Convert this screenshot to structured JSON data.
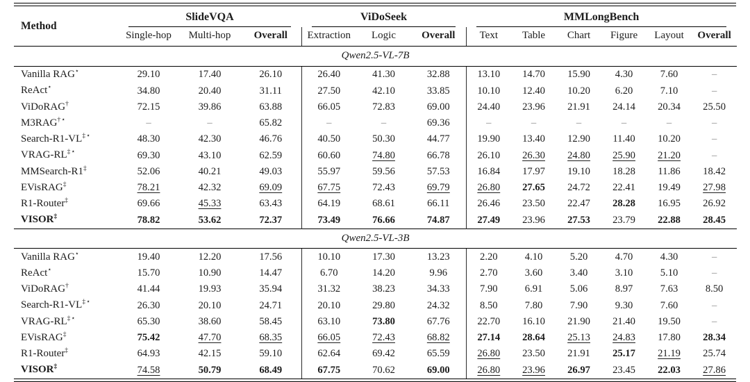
{
  "page": {
    "background": "#ffffff",
    "text_color": "#1c1c1c",
    "rule_color": "#000000"
  },
  "table": {
    "header": {
      "method_label": "Method",
      "groups": [
        {
          "label": "SlideVQA",
          "subcolumns": [
            "Single-hop",
            "Multi-hop",
            "b:Overall"
          ]
        },
        {
          "label": "ViDoSeek",
          "subcolumns": [
            "Extraction",
            "Logic",
            "b:Overall"
          ]
        },
        {
          "label": "MMLongBench",
          "subcolumns": [
            "Text",
            "Table",
            "Chart",
            "Figure",
            "Layout",
            "b:Overall"
          ]
        }
      ]
    },
    "sections": [
      {
        "title": "Qwen2.5-VL-7B",
        "rows": [
          {
            "method": "Vanilla RAG",
            "sup": "⋆",
            "bold": false,
            "values": [
              "29.10",
              "17.40",
              "26.10",
              "26.40",
              "41.30",
              "32.88",
              "13.10",
              "14.70",
              "15.90",
              "4.30",
              "7.60",
              "–"
            ]
          },
          {
            "method": "ReAct",
            "sup": "⋆",
            "bold": false,
            "values": [
              "34.80",
              "20.40",
              "31.11",
              "27.50",
              "42.10",
              "33.85",
              "10.10",
              "12.40",
              "10.20",
              "6.20",
              "7.10",
              "–"
            ]
          },
          {
            "method": "ViDoRAG",
            "sup": "†",
            "bold": false,
            "values": [
              "72.15",
              "39.86",
              "63.88",
              "66.05",
              "72.83",
              "69.00",
              "24.40",
              "23.96",
              "21.91",
              "24.14",
              "20.34",
              "25.50"
            ]
          },
          {
            "method": "M3RAG",
            "sup": "†⋆",
            "bold": false,
            "values": [
              "–",
              "–",
              "65.82",
              "–",
              "–",
              "69.36",
              "–",
              "–",
              "–",
              "–",
              "–",
              "–"
            ]
          },
          {
            "method": "Search-R1-VL",
            "sup": "‡⋆",
            "bold": false,
            "values": [
              "48.30",
              "42.30",
              "46.76",
              "40.50",
              "50.30",
              "44.77",
              "19.90",
              "13.40",
              "12.90",
              "11.40",
              "10.20",
              "–"
            ]
          },
          {
            "method": "VRAG-RL",
            "sup": "‡⋆",
            "bold": false,
            "values": [
              "69.30",
              "43.10",
              "62.59",
              "60.60",
              "u:74.80",
              "66.78",
              "26.10",
              "u:26.30",
              "u:24.80",
              "u:25.90",
              "u:21.20",
              "–"
            ]
          },
          {
            "method": "MMSearch-R1",
            "sup": "‡",
            "bold": false,
            "values": [
              "52.06",
              "40.21",
              "49.03",
              "55.97",
              "59.56",
              "57.53",
              "16.84",
              "17.97",
              "19.10",
              "18.28",
              "11.86",
              "18.42"
            ]
          },
          {
            "method": "EVisRAG",
            "sup": "‡",
            "bold": false,
            "values": [
              "u:78.21",
              "42.32",
              "u:69.09",
              "u:67.75",
              "72.43",
              "u:69.79",
              "u:26.80",
              "b:27.65",
              "24.72",
              "22.41",
              "19.49",
              "u:27.98"
            ]
          },
          {
            "method": "R1-Router",
            "sup": "‡",
            "bold": false,
            "values": [
              "69.66",
              "u:45.33",
              "63.43",
              "64.19",
              "68.61",
              "66.11",
              "26.46",
              "23.50",
              "22.47",
              "b:28.28",
              "16.95",
              "26.92"
            ]
          },
          {
            "method": "VISOR",
            "sup": "‡",
            "bold": true,
            "values": [
              "b:78.82",
              "b:53.62",
              "b:72.37",
              "b:73.49",
              "b:76.66",
              "b:74.87",
              "b:27.49",
              "23.96",
              "b:27.53",
              "23.79",
              "b:22.88",
              "b:28.45"
            ]
          }
        ]
      },
      {
        "title": "Qwen2.5-VL-3B",
        "rows": [
          {
            "method": "Vanilla RAG",
            "sup": "⋆",
            "bold": false,
            "values": [
              "19.40",
              "12.20",
              "17.56",
              "10.10",
              "17.30",
              "13.23",
              "2.20",
              "4.10",
              "5.20",
              "4.70",
              "4.30",
              "–"
            ]
          },
          {
            "method": "ReAct",
            "sup": "⋆",
            "bold": false,
            "values": [
              "15.70",
              "10.90",
              "14.47",
              "6.70",
              "14.20",
              "9.96",
              "2.70",
              "3.60",
              "3.40",
              "3.10",
              "5.10",
              "–"
            ]
          },
          {
            "method": "ViDoRAG",
            "sup": "†",
            "bold": false,
            "values": [
              "41.44",
              "19.93",
              "35.94",
              "31.32",
              "38.23",
              "34.33",
              "7.90",
              "6.91",
              "5.06",
              "8.97",
              "7.63",
              "8.50"
            ]
          },
          {
            "method": "Search-R1-VL",
            "sup": "‡⋆",
            "bold": false,
            "values": [
              "26.30",
              "20.10",
              "24.71",
              "20.10",
              "29.80",
              "24.32",
              "8.50",
              "7.80",
              "7.90",
              "9.30",
              "7.60",
              "–"
            ]
          },
          {
            "method": "VRAG-RL",
            "sup": "‡⋆",
            "bold": false,
            "values": [
              "65.30",
              "38.60",
              "58.45",
              "63.10",
              "b:73.80",
              "67.76",
              "22.70",
              "16.10",
              "21.90",
              "21.40",
              "19.50",
              "–"
            ]
          },
          {
            "method": "EVisRAG",
            "sup": "‡",
            "bold": false,
            "values": [
              "b:75.42",
              "u:47.70",
              "u:68.35",
              "u:66.05",
              "u:72.43",
              "u:68.82",
              "b:27.14",
              "b:28.64",
              "u:25.13",
              "u:24.83",
              "17.80",
              "b:28.34"
            ]
          },
          {
            "method": "R1-Router",
            "sup": "‡",
            "bold": false,
            "values": [
              "64.93",
              "42.15",
              "59.10",
              "62.64",
              "69.42",
              "65.59",
              "u:26.80",
              "23.50",
              "21.91",
              "b:25.17",
              "u:21.19",
              "25.74"
            ]
          },
          {
            "method": "VISOR",
            "sup": "‡",
            "bold": true,
            "values": [
              "u:74.58",
              "b:50.79",
              "b:68.49",
              "b:67.75",
              "70.62",
              "b:69.00",
              "u:26.80",
              "u:23.96",
              "b:26.97",
              "23.45",
              "b:22.03",
              "u:27.86"
            ]
          }
        ]
      }
    ]
  }
}
